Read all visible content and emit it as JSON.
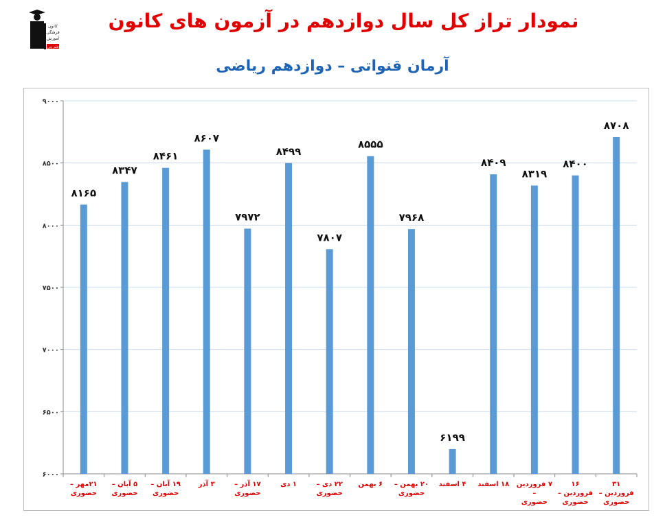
{
  "title": "نمودار تراز کل سال دوازدهم در آزمون های کانون",
  "subtitle": "آرمان قنواتی – دوازدهم ریاضی",
  "logo": {
    "text": [
      "کانون",
      "فرهنگی",
      "آموزش",
      "قلم چی"
    ]
  },
  "colors": {
    "bar": "#5b9bd5",
    "title": "#e00000",
    "subtitle": "#1f64b4",
    "category_labels": "#e00000",
    "grid": "#c9dcef"
  },
  "chart_data": {
    "type": "bar",
    "ylim": [
      6000,
      9000
    ],
    "yticks": [
      6000,
      6500,
      7000,
      7500,
      8000,
      8500,
      9000
    ],
    "ytick_labels": [
      "۶۰۰۰",
      "۶۵۰۰",
      "۷۰۰۰",
      "۷۵۰۰",
      "۸۰۰۰",
      "۸۵۰۰",
      "۹۰۰۰"
    ],
    "grid": "horizontal",
    "categories": [
      [
        "۲۱مهر –",
        "حضوری"
      ],
      [
        "۵ آبان –",
        "حضوری"
      ],
      [
        "۱۹ آبان –",
        "حضوری"
      ],
      [
        "۳ آذر",
        ""
      ],
      [
        "۱۷ آذر –",
        "حضوری"
      ],
      [
        "۱ دی",
        ""
      ],
      [
        "۲۲ دی –",
        "حضوری"
      ],
      [
        "۶ بهمن",
        ""
      ],
      [
        "۲۰ بهمن –",
        "حضوری"
      ],
      [
        "۴ اسفند",
        ""
      ],
      [
        "۱۸ اسفند",
        ""
      ],
      [
        "۷ فروردین –",
        "حضوری"
      ],
      [
        "۱۶ فروردین –",
        "حضوری"
      ],
      [
        "۳۱ فروردین –",
        "حضوری"
      ]
    ],
    "values": [
      8165,
      8347,
      8461,
      8607,
      7972,
      8499,
      7807,
      8555,
      7968,
      6199,
      8409,
      8319,
      8400,
      8708
    ],
    "data_labels": [
      "۸۱۶۵",
      "۸۳۴۷",
      "۸۴۶۱",
      "۸۶۰۷",
      "۷۹۷۲",
      "۸۴۹۹",
      "۷۸۰۷",
      "۸۵۵۵",
      "۷۹۶۸",
      "۶۱۹۹",
      "۸۴۰۹",
      "۸۳۱۹",
      "۸۴۰۰",
      "۸۷۰۸"
    ]
  }
}
